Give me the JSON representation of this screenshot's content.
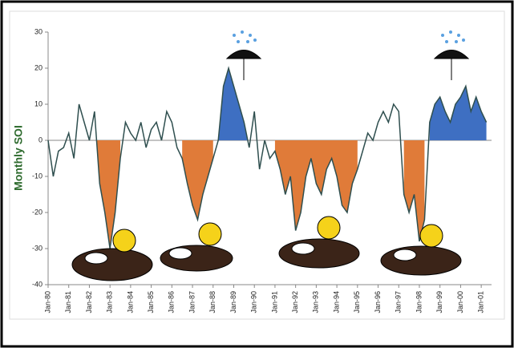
{
  "chart_data": {
    "type": "line",
    "y_label": "Monthly SOI",
    "color": "#2f4f4f",
    "x": [
      1980,
      1980.25,
      1980.5,
      1980.75,
      1981,
      1981.25,
      1981.5,
      1981.75,
      1982,
      1982.25,
      1982.5,
      1982.75,
      1983,
      1983.25,
      1983.5,
      1983.75,
      1984,
      1984.25,
      1984.5,
      1984.75,
      1985,
      1985.25,
      1985.5,
      1985.75,
      1986,
      1986.25,
      1986.5,
      1986.75,
      1987,
      1987.25,
      1987.5,
      1987.75,
      1988,
      1988.25,
      1988.5,
      1988.75,
      1989,
      1989.25,
      1989.5,
      1989.75,
      1990,
      1990.25,
      1990.5,
      1990.75,
      1991,
      1991.25,
      1991.5,
      1991.75,
      1992,
      1992.25,
      1992.5,
      1992.75,
      1993,
      1993.25,
      1993.5,
      1993.75,
      1994,
      1994.25,
      1994.5,
      1994.75,
      1995,
      1995.25,
      1995.5,
      1995.75,
      1996,
      1996.25,
      1996.5,
      1996.75,
      1997,
      1997.25,
      1997.5,
      1997.75,
      1998,
      1998.25,
      1998.5,
      1998.75,
      1999,
      1999.25,
      1999.5,
      1999.75,
      2000,
      2000.25,
      2000.5,
      2000.75,
      2001,
      2001.25
    ],
    "values": [
      0,
      -10,
      -3,
      -2,
      2,
      -5,
      10,
      5,
      0,
      8,
      -12,
      -20,
      -30,
      -20,
      -5,
      5,
      2,
      0,
      5,
      -2,
      3,
      5,
      0,
      8,
      5,
      -2,
      -5,
      -12,
      -18,
      -22,
      -15,
      -10,
      -5,
      0,
      15,
      20,
      15,
      10,
      5,
      -2,
      8,
      -8,
      0,
      -5,
      -3,
      -8,
      -15,
      -10,
      -25,
      -20,
      -10,
      -5,
      -12,
      -15,
      -8,
      -5,
      -10,
      -18,
      -20,
      -12,
      -8,
      -3,
      2,
      0,
      5,
      8,
      5,
      10,
      8,
      -15,
      -20,
      -15,
      -28,
      -22,
      5,
      10,
      12,
      8,
      5,
      10,
      12,
      15,
      8,
      12,
      8,
      5
    ],
    "highlight_periods": [
      {
        "from": 1982.25,
        "to": 1983.5,
        "side": "below",
        "color": "#e07b39"
      },
      {
        "from": 1986.5,
        "to": 1988,
        "side": "below",
        "color": "#e07b39"
      },
      {
        "from": 1988.25,
        "to": 1989.75,
        "side": "above",
        "color": "#3e6fc2"
      },
      {
        "from": 1991,
        "to": 1995,
        "side": "below",
        "color": "#e07b39"
      },
      {
        "from": 1997.25,
        "to": 1998.25,
        "side": "below",
        "color": "#e07b39"
      },
      {
        "from": 1998.5,
        "to": 2001.25,
        "side": "above",
        "color": "#3e6fc2"
      }
    ],
    "xlim": [
      1980,
      2001.5
    ],
    "ylim": [
      -40,
      30
    ],
    "yticks": [
      -40,
      -30,
      -20,
      -10,
      0,
      10,
      20,
      30
    ],
    "xticks": [
      {
        "value": 1980,
        "label": "Jan-80"
      },
      {
        "value": 1981,
        "label": "Jan-81"
      },
      {
        "value": 1982,
        "label": "Jan-82"
      },
      {
        "value": 1983,
        "label": "Jan-83"
      },
      {
        "value": 1984,
        "label": "Jan-84"
      },
      {
        "value": 1985,
        "label": "Jan-85"
      },
      {
        "value": 1986,
        "label": "Jan-86"
      },
      {
        "value": 1987,
        "label": "Jan-87"
      },
      {
        "value": 1988,
        "label": "Jan-88"
      },
      {
        "value": 1989,
        "label": "Jan-89"
      },
      {
        "value": 1990,
        "label": "Jan-90"
      },
      {
        "value": 1991,
        "label": "Jan-91"
      },
      {
        "value": 1992,
        "label": "Jan-92"
      },
      {
        "value": 1993,
        "label": "Jan-93"
      },
      {
        "value": 1994,
        "label": "Jan-94"
      },
      {
        "value": 1995,
        "label": "Jan-95"
      },
      {
        "value": 1996,
        "label": "Jan-96"
      },
      {
        "value": 1997,
        "label": "Jan-97"
      },
      {
        "value": 1998,
        "label": "Jan-98"
      },
      {
        "value": 1999,
        "label": "Jan-99"
      },
      {
        "value": 2000,
        "label": "Jan-00"
      },
      {
        "value": 2001,
        "label": "Jan-01"
      }
    ]
  }
}
